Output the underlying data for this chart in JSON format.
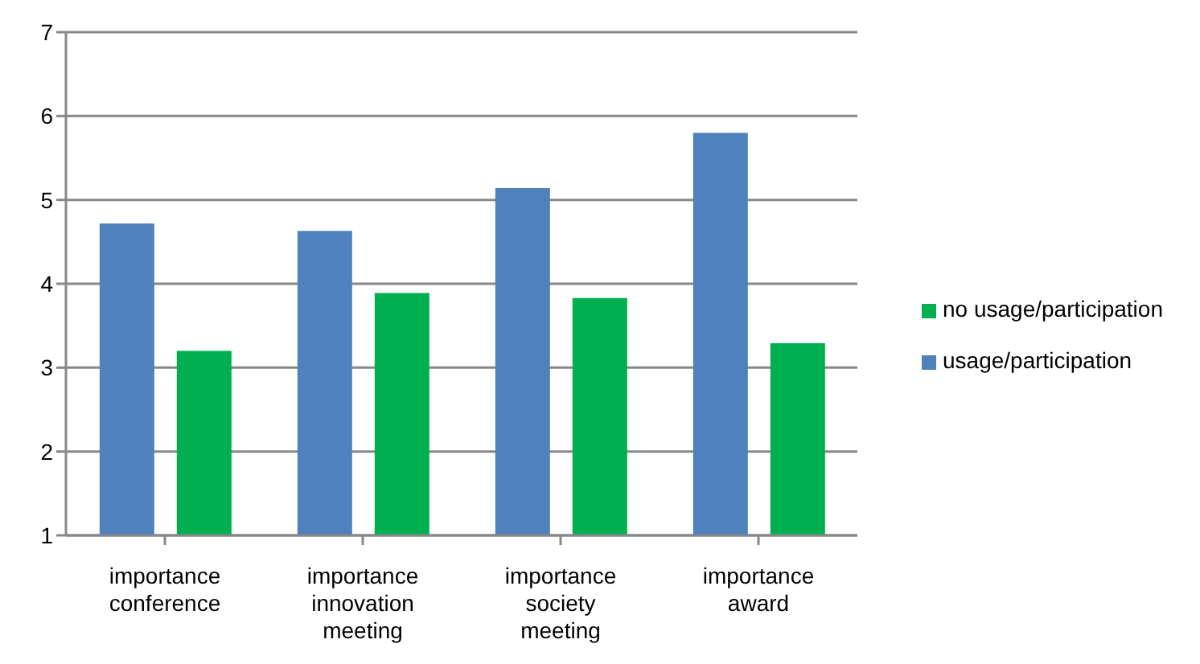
{
  "chart_data": {
    "type": "bar",
    "categories": [
      "importance conference",
      "importance innovation meeting",
      "importance society meeting",
      "importance award"
    ],
    "series": [
      {
        "name": "usage/participation",
        "color": "#4f81bd",
        "values": [
          4.72,
          4.63,
          5.14,
          5.8
        ]
      },
      {
        "name": "no usage/participation",
        "color": "#00b050",
        "values": [
          3.2,
          3.89,
          3.83,
          3.29
        ]
      }
    ],
    "ylim": [
      1,
      7
    ],
    "yticks": [
      1,
      2,
      3,
      4,
      5,
      6,
      7
    ],
    "grid": "y",
    "legend": "right"
  }
}
